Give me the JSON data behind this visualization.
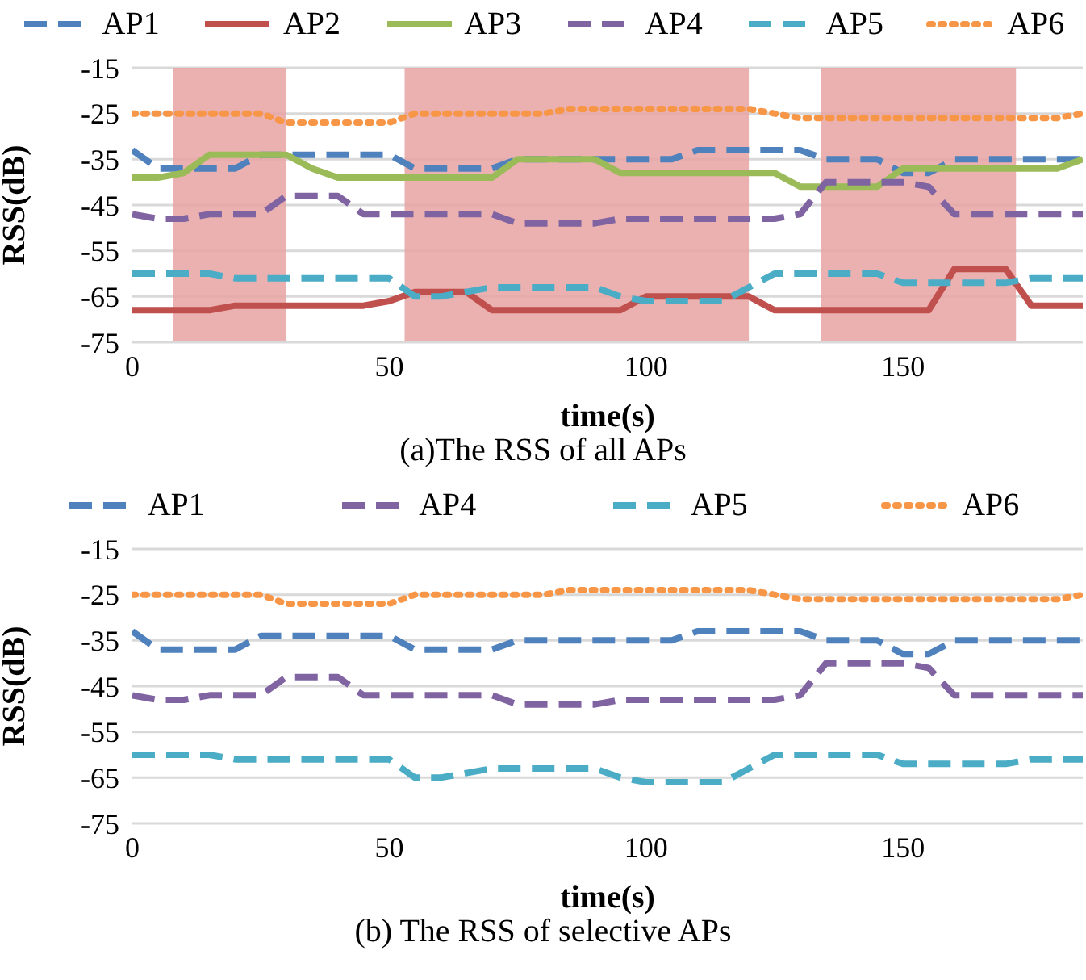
{
  "chart_data": [
    {
      "type": "line",
      "title": "(a)The RSS of all APs",
      "xlabel": "time(s)",
      "ylabel": "RSS(dB)",
      "xlim": [
        0,
        185
      ],
      "xticks": [
        0,
        50,
        100,
        150
      ],
      "ylim": [
        -75,
        -15
      ],
      "yticks": [
        -15,
        -25,
        -35,
        -45,
        -55,
        -65,
        -75
      ],
      "grid": "y",
      "legend": "top",
      "marker": "none",
      "x": [
        0,
        5,
        10,
        15,
        20,
        25,
        30,
        35,
        40,
        45,
        50,
        55,
        60,
        65,
        70,
        75,
        80,
        85,
        90,
        95,
        100,
        105,
        110,
        115,
        120,
        125,
        130,
        135,
        140,
        145,
        150,
        155,
        160,
        165,
        170,
        175,
        180,
        185
      ],
      "bands": [
        {
          "axis": "x",
          "from": 8,
          "to": 30,
          "color": "#e8a3a3"
        },
        {
          "axis": "x",
          "from": 53,
          "to": 120,
          "color": "#e8a3a3"
        },
        {
          "axis": "x",
          "from": 134,
          "to": 172,
          "color": "#e8a3a3"
        }
      ],
      "series": [
        {
          "name": "AP1",
          "color": "#4f81bd",
          "line_style": "dashed",
          "values": [
            -33,
            -37,
            -37,
            -37,
            -37,
            -34,
            -34,
            -34,
            -34,
            -34,
            -34,
            -37,
            -37,
            -37,
            -37,
            -35,
            -35,
            -35,
            -35,
            -35,
            -35,
            -35,
            -33,
            -33,
            -33,
            -33,
            -33,
            -35,
            -35,
            -35,
            -38,
            -38,
            -35,
            -35,
            -35,
            -35,
            -35,
            -35
          ]
        },
        {
          "name": "AP2",
          "color": "#c0504d",
          "line_style": "solid",
          "values": [
            -68,
            -68,
            -68,
            -68,
            -67,
            -67,
            -67,
            -67,
            -67,
            -67,
            -66,
            -64,
            -64,
            -64,
            -68,
            -68,
            -68,
            -68,
            -68,
            -68,
            -65,
            -65,
            -65,
            -65,
            -65,
            -68,
            -68,
            -68,
            -68,
            -68,
            -68,
            -68,
            -59,
            -59,
            -59,
            -67,
            -67,
            -67
          ]
        },
        {
          "name": "AP3",
          "color": "#9bbb59",
          "line_style": "solid",
          "values": [
            -39,
            -39,
            -38,
            -34,
            -34,
            -34,
            -34,
            -37,
            -39,
            -39,
            -39,
            -39,
            -39,
            -39,
            -39,
            -35,
            -35,
            -35,
            -35,
            -38,
            -38,
            -38,
            -38,
            -38,
            -38,
            -38,
            -41,
            -41,
            -41,
            -41,
            -37,
            -37,
            -37,
            -37,
            -37,
            -37,
            -37,
            -35
          ]
        },
        {
          "name": "AP4",
          "color": "#8064a2",
          "line_style": "dashed",
          "values": [
            -47,
            -48,
            -48,
            -47,
            -47,
            -47,
            -43,
            -43,
            -43,
            -47,
            -47,
            -47,
            -47,
            -47,
            -47,
            -49,
            -49,
            -49,
            -49,
            -48,
            -48,
            -48,
            -48,
            -48,
            -48,
            -48,
            -47,
            -40,
            -40,
            -40,
            -40,
            -41,
            -47,
            -47,
            -47,
            -47,
            -47,
            -47
          ]
        },
        {
          "name": "AP5",
          "color": "#4bacc6",
          "line_style": "dashed",
          "values": [
            -60,
            -60,
            -60,
            -60,
            -61,
            -61,
            -61,
            -61,
            -61,
            -61,
            -61,
            -65,
            -65,
            -64,
            -63,
            -63,
            -63,
            -63,
            -63,
            -65,
            -66,
            -66,
            -66,
            -66,
            -63,
            -60,
            -60,
            -60,
            -60,
            -60,
            -62,
            -62,
            -62,
            -62,
            -62,
            -61,
            -61,
            -61
          ]
        },
        {
          "name": "AP6",
          "color": "#f79646",
          "line_style": "dotted",
          "values": [
            -25,
            -25,
            -25,
            -25,
            -25,
            -25,
            -27,
            -27,
            -27,
            -27,
            -27,
            -25,
            -25,
            -25,
            -25,
            -25,
            -25,
            -24,
            -24,
            -24,
            -24,
            -24,
            -24,
            -24,
            -24,
            -25,
            -26,
            -26,
            -26,
            -26,
            -26,
            -26,
            -26,
            -26,
            -26,
            -26,
            -26,
            -25
          ]
        }
      ]
    },
    {
      "type": "line",
      "title": "(b) The RSS of selective APs",
      "xlabel": "time(s)",
      "ylabel": "RSS(dB)",
      "xlim": [
        0,
        185
      ],
      "xticks": [
        0,
        50,
        100,
        150
      ],
      "ylim": [
        -75,
        -15
      ],
      "yticks": [
        -15,
        -25,
        -35,
        -45,
        -55,
        -65,
        -75
      ],
      "grid": "y",
      "legend": "top",
      "marker": "none",
      "x": [
        0,
        5,
        10,
        15,
        20,
        25,
        30,
        35,
        40,
        45,
        50,
        55,
        60,
        65,
        70,
        75,
        80,
        85,
        90,
        95,
        100,
        105,
        110,
        115,
        120,
        125,
        130,
        135,
        140,
        145,
        150,
        155,
        160,
        165,
        170,
        175,
        180,
        185
      ],
      "series": [
        {
          "name": "AP1",
          "color": "#4f81bd",
          "line_style": "dashed",
          "values": [
            -33,
            -37,
            -37,
            -37,
            -37,
            -34,
            -34,
            -34,
            -34,
            -34,
            -34,
            -37,
            -37,
            -37,
            -37,
            -35,
            -35,
            -35,
            -35,
            -35,
            -35,
            -35,
            -33,
            -33,
            -33,
            -33,
            -33,
            -35,
            -35,
            -35,
            -38,
            -38,
            -35,
            -35,
            -35,
            -35,
            -35,
            -35
          ]
        },
        {
          "name": "AP4",
          "color": "#8064a2",
          "line_style": "dashed",
          "values": [
            -47,
            -48,
            -48,
            -47,
            -47,
            -47,
            -43,
            -43,
            -43,
            -47,
            -47,
            -47,
            -47,
            -47,
            -47,
            -49,
            -49,
            -49,
            -49,
            -48,
            -48,
            -48,
            -48,
            -48,
            -48,
            -48,
            -47,
            -40,
            -40,
            -40,
            -40,
            -41,
            -47,
            -47,
            -47,
            -47,
            -47,
            -47
          ]
        },
        {
          "name": "AP5",
          "color": "#4bacc6",
          "line_style": "dashed",
          "values": [
            -60,
            -60,
            -60,
            -60,
            -61,
            -61,
            -61,
            -61,
            -61,
            -61,
            -61,
            -65,
            -65,
            -64,
            -63,
            -63,
            -63,
            -63,
            -63,
            -65,
            -66,
            -66,
            -66,
            -66,
            -63,
            -60,
            -60,
            -60,
            -60,
            -60,
            -62,
            -62,
            -62,
            -62,
            -62,
            -61,
            -61,
            -61
          ]
        },
        {
          "name": "AP6",
          "color": "#f79646",
          "line_style": "dotted",
          "values": [
            -25,
            -25,
            -25,
            -25,
            -25,
            -25,
            -27,
            -27,
            -27,
            -27,
            -27,
            -25,
            -25,
            -25,
            -25,
            -25,
            -25,
            -24,
            -24,
            -24,
            -24,
            -24,
            -24,
            -24,
            -24,
            -25,
            -26,
            -26,
            -26,
            -26,
            -26,
            -26,
            -26,
            -26,
            -26,
            -26,
            -26,
            -25
          ]
        }
      ]
    }
  ]
}
